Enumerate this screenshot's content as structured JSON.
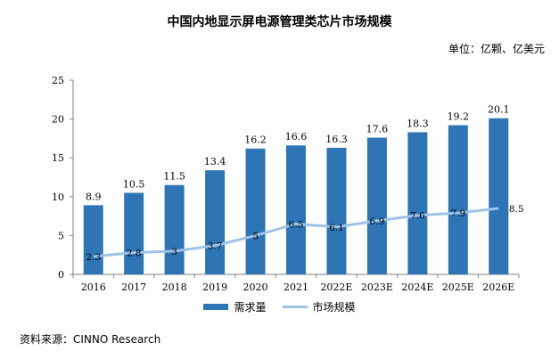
{
  "title": "中国内地显示屏电源管理类芯片市场规模",
  "unit": "单位：亿颗、亿美元",
  "source": "资料来源：CINNO Research",
  "colors": {
    "bar": "#2e75b6",
    "line": "#9dc3e6"
  },
  "chart_data": {
    "type": "bar",
    "categories": [
      "2016",
      "2017",
      "2018",
      "2019",
      "2020",
      "2021",
      "2022E",
      "2023E",
      "2024E",
      "2025E",
      "2026E"
    ],
    "series": [
      {
        "name": "需求量",
        "type": "bar",
        "values": [
          8.9,
          10.5,
          11.5,
          13.4,
          16.2,
          16.6,
          16.3,
          17.6,
          18.3,
          19.2,
          20.1
        ]
      },
      {
        "name": "市场规模",
        "type": "line",
        "values": [
          2.3,
          2.8,
          3.0,
          3.7,
          5.0,
          6.5,
          6.1,
          6.9,
          7.6,
          7.9,
          8.5
        ]
      }
    ],
    "ylim": [
      0,
      25
    ],
    "yticks": [
      "0",
      "5",
      "10",
      "15",
      "20",
      "25"
    ],
    "legend_position": "bottom",
    "grid": false
  }
}
